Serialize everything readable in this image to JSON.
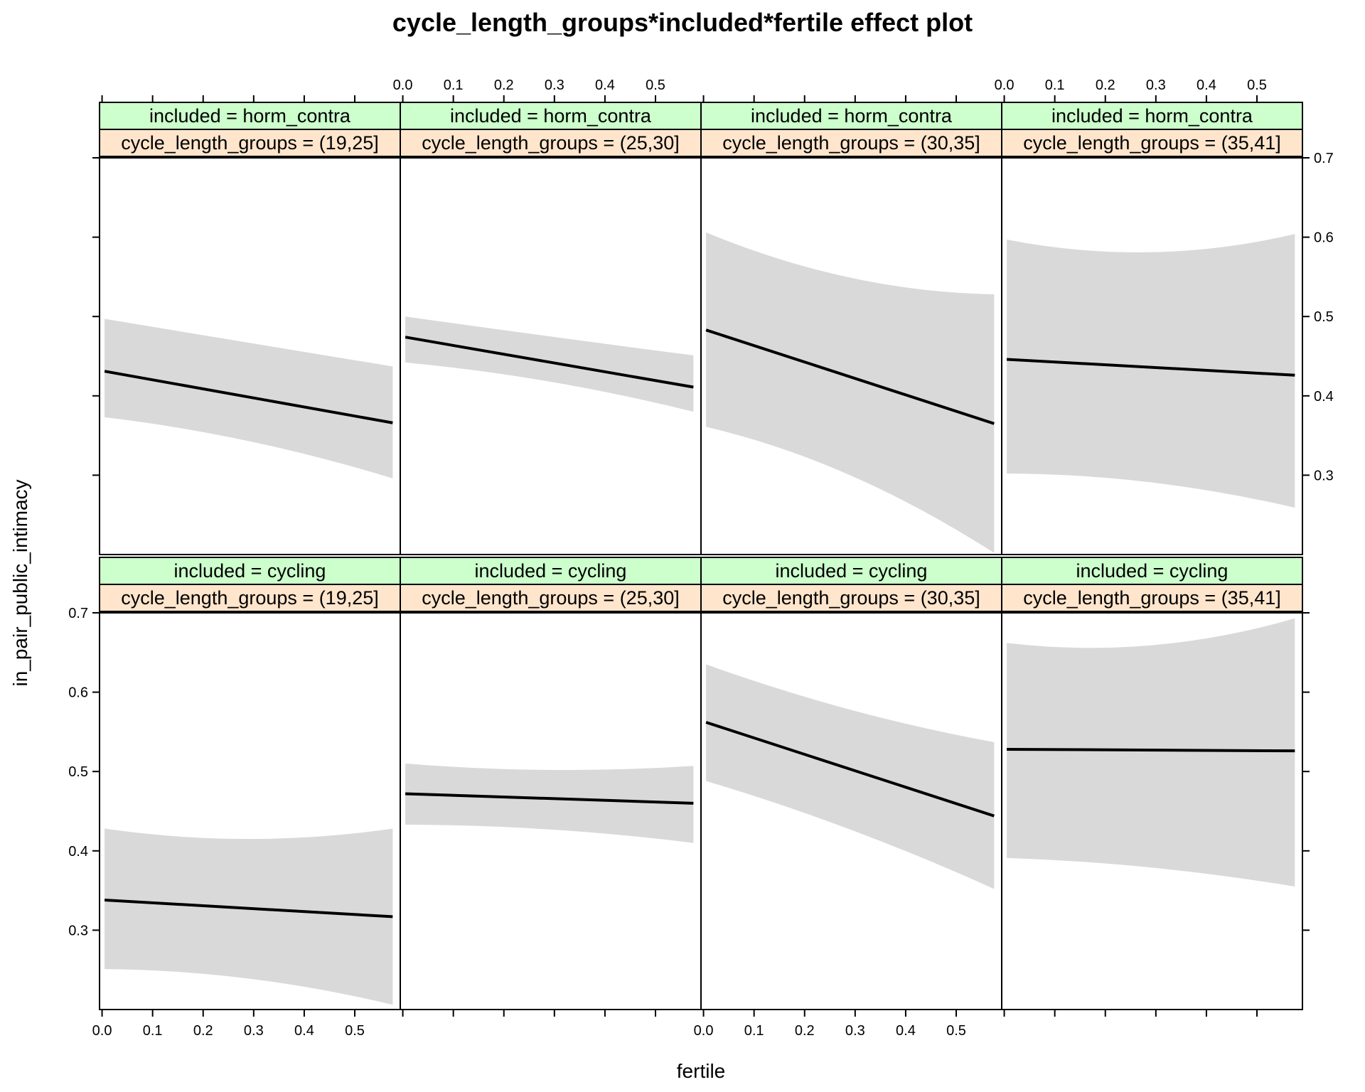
{
  "chart_data": {
    "type": "line",
    "title": "cycle_length_groups*included*fertile effect plot",
    "xlabel": "fertile",
    "ylabel": "in_pair_public_intimacy",
    "xlim": [
      -0.005,
      0.59
    ],
    "ylim": [
      0.2,
      0.7
    ],
    "x_ticks": [
      0.0,
      0.1,
      0.2,
      0.3,
      0.4,
      0.5
    ],
    "x_tick_labels": [
      "0.0",
      "0.1",
      "0.2",
      "0.3",
      "0.4",
      "0.5"
    ],
    "y_ticks": [
      0.3,
      0.4,
      0.5,
      0.6,
      0.7
    ],
    "y_tick_labels": [
      "0.3",
      "0.4",
      "0.5",
      "0.6",
      "0.7"
    ],
    "band_color": "#d9d9d9",
    "line_color": "#000000",
    "strip_included_color": "#ccffcc",
    "strip_cycle_color": "#ffe5cc",
    "rows": [
      {
        "included_label": "included = horm_contra",
        "panels": [
          {
            "cycle_label": "cycle_length_groups = (19,25]",
            "x": [
              0.005,
              0.575
            ],
            "fit": [
              0.431,
              0.366
            ],
            "lower": [
              0.373,
              0.296
            ],
            "upper": [
              0.497,
              0.437
            ],
            "lower_mid": 0.343,
            "upper_mid": 0.467
          },
          {
            "cycle_label": "cycle_length_groups = (25,30]",
            "x": [
              0.005,
              0.575
            ],
            "fit": [
              0.474,
              0.411
            ],
            "lower": [
              0.442,
              0.38
            ],
            "upper": [
              0.5,
              0.451
            ],
            "lower_mid": 0.418,
            "upper_mid": 0.475
          },
          {
            "cycle_label": "cycle_length_groups = (30,35]",
            "x": [
              0.005,
              0.575
            ],
            "fit": [
              0.483,
              0.365
            ],
            "lower": [
              0.361,
              0.202
            ],
            "upper": [
              0.606,
              0.528
            ],
            "lower_mid": 0.3,
            "upper_mid": 0.549
          },
          {
            "cycle_label": "cycle_length_groups = (35,41]",
            "x": [
              0.005,
              0.575
            ],
            "fit": [
              0.446,
              0.426
            ],
            "lower": [
              0.302,
              0.259
            ],
            "upper": [
              0.597,
              0.604
            ],
            "lower_mid": 0.291,
            "upper_mid": 0.581
          }
        ]
      },
      {
        "included_label": "included = cycling",
        "panels": [
          {
            "cycle_label": "cycle_length_groups = (19,25]",
            "x": [
              0.005,
              0.575
            ],
            "fit": [
              0.338,
              0.317
            ],
            "lower": [
              0.251,
              0.206
            ],
            "upper": [
              0.428,
              0.428
            ],
            "lower_mid": 0.239,
            "upper_mid": 0.415
          },
          {
            "cycle_label": "cycle_length_groups = (25,30]",
            "x": [
              0.005,
              0.575
            ],
            "fit": [
              0.472,
              0.46
            ],
            "lower": [
              0.433,
              0.41
            ],
            "upper": [
              0.51,
              0.507
            ],
            "lower_mid": 0.427,
            "upper_mid": 0.502
          },
          {
            "cycle_label": "cycle_length_groups = (30,35]",
            "x": [
              0.005,
              0.575
            ],
            "fit": [
              0.562,
              0.444
            ],
            "lower": [
              0.488,
              0.352
            ],
            "upper": [
              0.635,
              0.537
            ],
            "lower_mid": 0.427,
            "upper_mid": 0.578
          },
          {
            "cycle_label": "cycle_length_groups = (35,41]",
            "x": [
              0.005,
              0.575
            ],
            "fit": [
              0.528,
              0.526
            ],
            "lower": [
              0.391,
              0.355
            ],
            "upper": [
              0.662,
              0.693
            ],
            "lower_mid": 0.379,
            "upper_mid": 0.659
          }
        ]
      }
    ]
  }
}
